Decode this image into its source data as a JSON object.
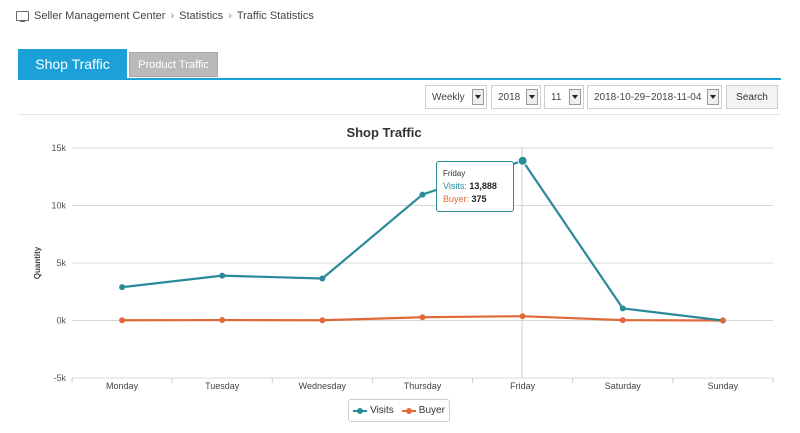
{
  "breadcrumb": {
    "icon": "monitor-icon",
    "items": [
      "Seller Management Center",
      "Statistics",
      "Traffic Statistics"
    ]
  },
  "tabs": [
    {
      "label": "Shop Traffic",
      "active": true
    },
    {
      "label": "Product Traffic",
      "active": false
    }
  ],
  "filters": {
    "period": "Weekly",
    "year": "2018",
    "month": "11",
    "range": "2018-10-29~2018-11-04",
    "search_label": "Search"
  },
  "chart_data": {
    "type": "line",
    "title": "Shop Traffic",
    "ylabel": "Quantity",
    "xlabel": "",
    "categories": [
      "Monday",
      "Tuesday",
      "Wednesday",
      "Thursday",
      "Friday",
      "Saturday",
      "Sunday"
    ],
    "ylim": [
      -5000,
      15000
    ],
    "yticks": [
      -5000,
      0,
      5000,
      10000,
      15000
    ],
    "ytick_labels": [
      "-5k",
      "0k",
      "5k",
      "10k",
      "15k"
    ],
    "grid": true,
    "legend": "bottom-center",
    "series": [
      {
        "name": "Visits",
        "color": "#2a8a9a",
        "values": [
          2900,
          3900,
          3650,
          10950,
          13888,
          1050,
          0
        ]
      },
      {
        "name": "Buyer",
        "color": "#e0693a",
        "values": [
          20,
          40,
          20,
          280,
          375,
          30,
          0
        ]
      }
    ],
    "tooltip": {
      "category": "Friday",
      "visits_label": "Visits:",
      "visits_value": "13,888",
      "buyer_label": "Buyer:",
      "buyer_value": "375"
    }
  }
}
